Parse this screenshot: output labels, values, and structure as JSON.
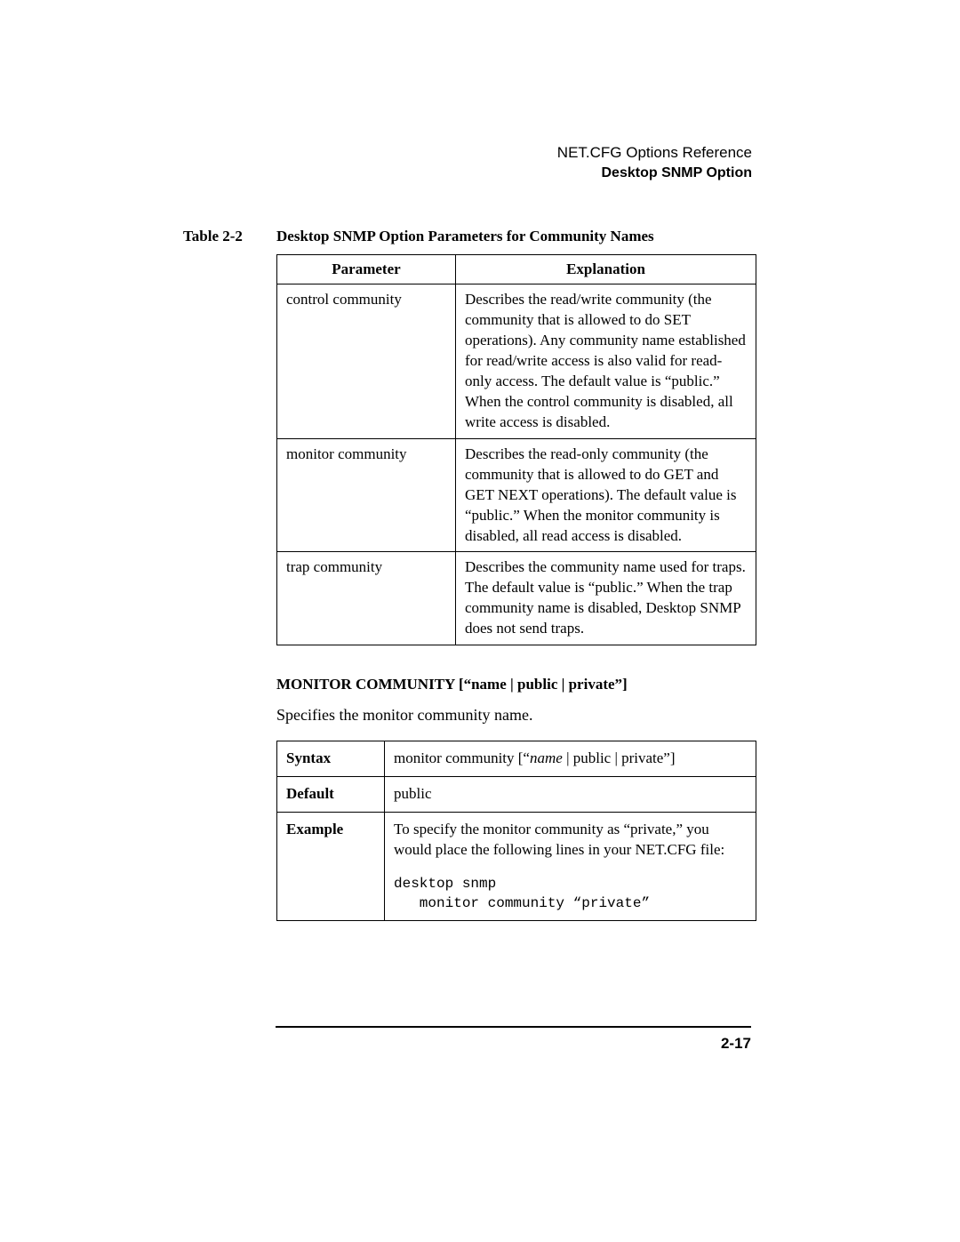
{
  "header": {
    "ref": "NET.CFG Options Reference",
    "sub": "Desktop SNMP Option"
  },
  "caption": {
    "label": "Table 2-2",
    "title": "Desktop SNMP Option Parameters for Community Names"
  },
  "params_table": {
    "headers": {
      "col1": "Parameter",
      "col2": "Explanation"
    },
    "rows": [
      {
        "param": "control community",
        "explain": "Describes the read/write community (the community that is allowed to do SET operations). Any community name established for read/write access is also valid for read-only access. The default value is “public.” When the control community is disabled, all write access is disabled."
      },
      {
        "param": "monitor community",
        "explain": "Describes the read-only community (the community that is allowed to do GET and GET NEXT operations). The default value is “public.” When the monitor community is disabled, all read access is disabled."
      },
      {
        "param": "trap community",
        "explain": "Describes the community name used for traps. The default value is “public.” When the trap community name is disabled, Desktop SNMP does not send traps."
      }
    ]
  },
  "section": {
    "heading": "MONITOR COMMUNITY [“name | public | private”]",
    "desc": "Specifies the monitor community name."
  },
  "syntax_table": {
    "rows": {
      "syntax": {
        "label": "Syntax",
        "pre": "monitor community [“",
        "italic": "name",
        "post": " | public | private”]"
      },
      "default": {
        "label": "Default",
        "value": "public"
      },
      "example": {
        "label": "Example",
        "text": "To specify the monitor community as “private,” you would place the following lines in your NET.CFG file:",
        "code": "desktop snmp\n   monitor community “private”"
      }
    }
  },
  "footer": {
    "page": "2-17"
  }
}
